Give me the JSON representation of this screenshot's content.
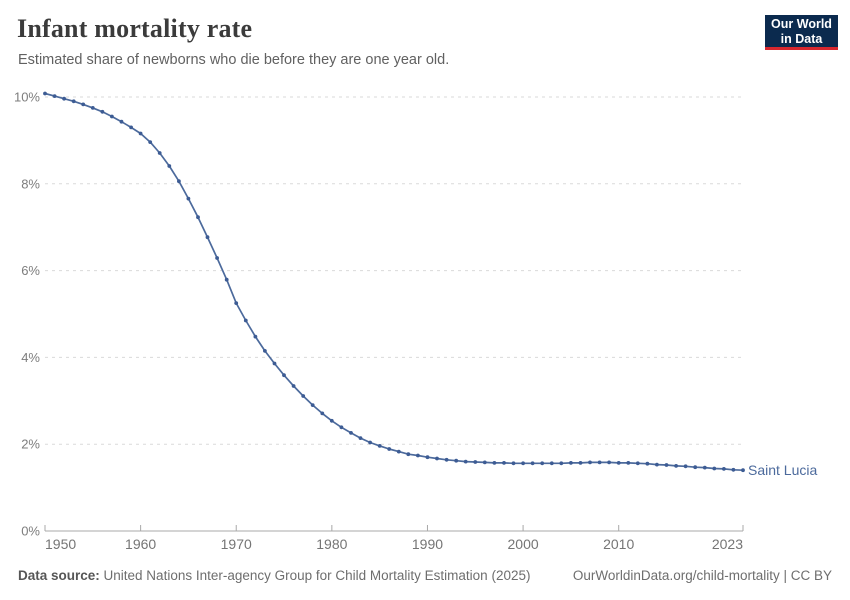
{
  "header": {
    "title": "Infant mortality rate",
    "subtitle": "Estimated share of newborns who die before they are one year old.",
    "logo": {
      "line1": "Our World",
      "line2": "in Data"
    }
  },
  "chart_data": {
    "type": "line",
    "title": "Infant mortality rate",
    "entity_label": "Saint Lucia",
    "unit": "%",
    "grid": "dashed-horizontal",
    "legend_position": "end-of-line-label",
    "line_color": "#4c6a9c",
    "marker_color": "#3d5c94",
    "xlim": [
      1950,
      2023
    ],
    "ylim": [
      0,
      10
    ],
    "yticks": [
      {
        "value": 0,
        "label": "0%"
      },
      {
        "value": 2,
        "label": "2%"
      },
      {
        "value": 4,
        "label": "4%"
      },
      {
        "value": 6,
        "label": "6%"
      },
      {
        "value": 8,
        "label": "8%"
      },
      {
        "value": 10,
        "label": "10%"
      }
    ],
    "xticks": [
      {
        "value": 1950,
        "label": "1950"
      },
      {
        "value": 1960,
        "label": "1960"
      },
      {
        "value": 1970,
        "label": "1970"
      },
      {
        "value": 1980,
        "label": "1980"
      },
      {
        "value": 1990,
        "label": "1990"
      },
      {
        "value": 2000,
        "label": "2000"
      },
      {
        "value": 2010,
        "label": "2010"
      },
      {
        "value": 2023,
        "label": "2023"
      }
    ],
    "x": [
      1950,
      1951,
      1952,
      1953,
      1954,
      1955,
      1956,
      1957,
      1958,
      1959,
      1960,
      1961,
      1962,
      1963,
      1964,
      1965,
      1966,
      1967,
      1968,
      1969,
      1970,
      1971,
      1972,
      1973,
      1974,
      1975,
      1976,
      1977,
      1978,
      1979,
      1980,
      1981,
      1982,
      1983,
      1984,
      1985,
      1986,
      1987,
      1988,
      1989,
      1990,
      1991,
      1992,
      1993,
      1994,
      1995,
      1996,
      1997,
      1998,
      1999,
      2000,
      2001,
      2002,
      2003,
      2004,
      2005,
      2006,
      2007,
      2008,
      2009,
      2010,
      2011,
      2012,
      2013,
      2014,
      2015,
      2016,
      2017,
      2018,
      2019,
      2020,
      2021,
      2022,
      2023
    ],
    "series": [
      {
        "name": "Saint Lucia",
        "values": [
          10.08,
          10.02,
          9.96,
          9.9,
          9.83,
          9.75,
          9.66,
          9.55,
          9.43,
          9.3,
          9.16,
          8.96,
          8.71,
          8.41,
          8.06,
          7.66,
          7.23,
          6.77,
          6.29,
          5.79,
          5.25,
          4.85,
          4.48,
          4.15,
          3.86,
          3.59,
          3.34,
          3.11,
          2.9,
          2.71,
          2.54,
          2.39,
          2.26,
          2.14,
          2.04,
          1.96,
          1.89,
          1.83,
          1.77,
          1.74,
          1.7,
          1.67,
          1.64,
          1.62,
          1.6,
          1.59,
          1.58,
          1.57,
          1.57,
          1.56,
          1.56,
          1.56,
          1.56,
          1.56,
          1.56,
          1.57,
          1.57,
          1.58,
          1.58,
          1.58,
          1.57,
          1.57,
          1.56,
          1.55,
          1.53,
          1.52,
          1.5,
          1.49,
          1.47,
          1.46,
          1.44,
          1.43,
          1.41,
          1.4
        ]
      }
    ]
  },
  "footer": {
    "source_label": "Data source:",
    "source_text": " United Nations Inter-agency Group for Child Mortality Estimation (2025)",
    "link_text": "OurWorldinData.org/child-mortality | CC BY"
  }
}
